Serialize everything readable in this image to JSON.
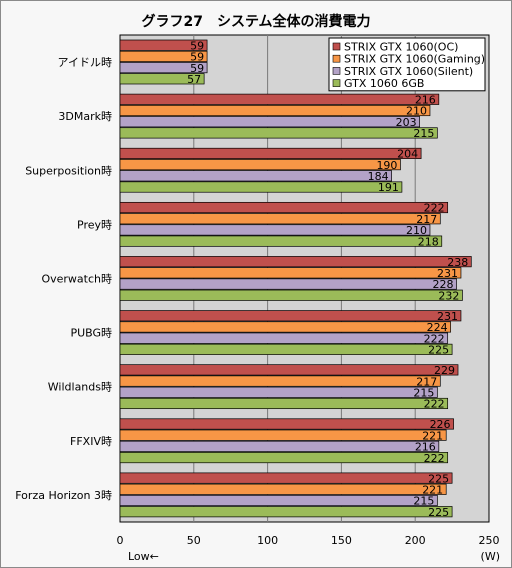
{
  "chart_data": {
    "type": "bar",
    "orientation": "horizontal",
    "title": "グラフ27　システム全体の消費電力",
    "unit": "(W)",
    "xlabel": "Low←",
    "xlim": [
      0,
      250
    ],
    "ticks": [
      0,
      50,
      100,
      150,
      200,
      250
    ],
    "grid": true,
    "legend_position": "top-right",
    "categories": [
      "アイドル時",
      "3DMark時",
      "Superposition時",
      "Prey時",
      "Overwatch時",
      "PUBG時",
      "Wildlands時",
      "FFXIV時",
      "Forza Horizon 3時"
    ],
    "series": [
      {
        "name": "STRIX GTX 1060(OC)",
        "color": "#c0504d",
        "values": [
          59,
          216,
          204,
          222,
          238,
          231,
          229,
          226,
          225
        ]
      },
      {
        "name": "STRIX GTX 1060(Gaming)",
        "color": "#f79646",
        "values": [
          59,
          210,
          190,
          217,
          231,
          224,
          217,
          221,
          221
        ]
      },
      {
        "name": "STRIX GTX 1060(Silent)",
        "color": "#b3a2c7",
        "values": [
          59,
          203,
          184,
          210,
          228,
          222,
          215,
          216,
          215
        ]
      },
      {
        "name": "GTX 1060 6GB",
        "color": "#9bbb59",
        "values": [
          57,
          215,
          191,
          218,
          232,
          225,
          222,
          222,
          225
        ]
      }
    ]
  }
}
